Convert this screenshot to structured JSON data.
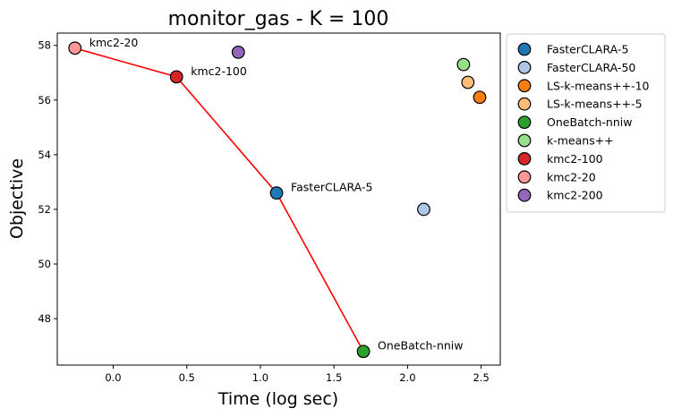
{
  "chart_data": {
    "type": "scatter",
    "title": "monitor_gas - K = 100",
    "xlabel": "Time (log sec)",
    "ylabel": "Objective",
    "xlim": [
      -0.38,
      2.63
    ],
    "ylim": [
      46.3,
      58.45
    ],
    "xticks": [
      "0.0",
      "0.5",
      "1.0",
      "1.5",
      "2.0",
      "2.5"
    ],
    "xtick_values": [
      0.0,
      0.5,
      1.0,
      1.5,
      2.0,
      2.5
    ],
    "yticks": [
      "48",
      "50",
      "52",
      "54",
      "56",
      "58"
    ],
    "ytick_values": [
      48,
      50,
      52,
      54,
      56,
      58
    ],
    "grid": false,
    "legend_position": "outside-right-top",
    "points": [
      {
        "name": "FasterCLARA-5",
        "x": 1.11,
        "y": 52.6,
        "color": "#1f77b4"
      },
      {
        "name": "FasterCLARA-50",
        "x": 2.11,
        "y": 52.0,
        "color": "#aec7e8"
      },
      {
        "name": "LS-k-means++-10",
        "x": 2.49,
        "y": 56.1,
        "color": "#ff7f0e"
      },
      {
        "name": "LS-k-means++-5",
        "x": 2.41,
        "y": 56.65,
        "color": "#ffbb78"
      },
      {
        "name": "OneBatch-nniw",
        "x": 1.7,
        "y": 46.8,
        "color": "#2ca02c"
      },
      {
        "name": "k-means++",
        "x": 2.38,
        "y": 57.3,
        "color": "#98df8a"
      },
      {
        "name": "kmc2-100",
        "x": 0.43,
        "y": 56.85,
        "color": "#d62728"
      },
      {
        "name": "kmc2-20",
        "x": -0.26,
        "y": 57.9,
        "color": "#ff9896"
      },
      {
        "name": "kmc2-200",
        "x": 0.85,
        "y": 57.75,
        "color": "#9467bd"
      }
    ],
    "pareto_front": [
      "kmc2-20",
      "kmc2-100",
      "FasterCLARA-5",
      "OneBatch-nniw"
    ],
    "pareto_color": "#ff0000",
    "annotations": [
      "kmc2-20",
      "kmc2-100",
      "FasterCLARA-5",
      "OneBatch-nniw"
    ]
  }
}
